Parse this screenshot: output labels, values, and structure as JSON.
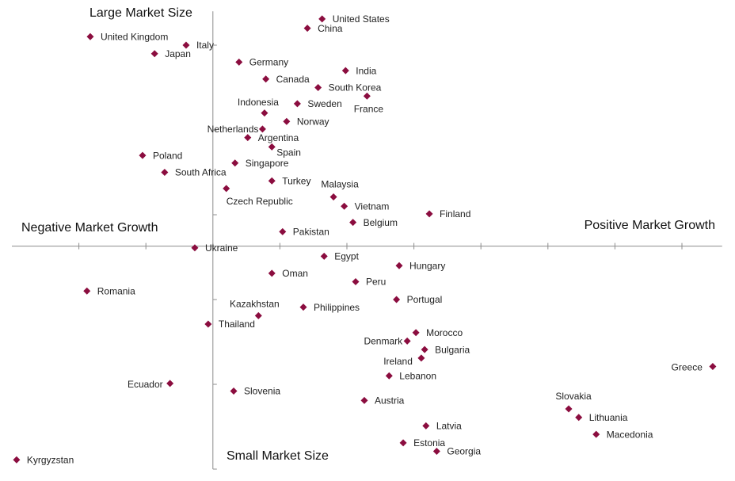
{
  "chart_data": {
    "type": "scatter",
    "annotations": [
      "Large Market Size",
      "Small Market Size",
      "Negative Market Growth",
      "Positive Market Growth"
    ],
    "color": "#8b0d3f",
    "xlim": [
      0,
      10.6
    ],
    "ylim": [
      0,
      5.4
    ],
    "xticks": [
      1,
      2,
      3,
      4,
      5,
      6,
      7,
      8,
      9,
      10
    ],
    "yticks": [
      0,
      1,
      2,
      3,
      4,
      5
    ],
    "axes_cross": [
      3,
      2.63
    ],
    "point_labels": [
      "United States",
      "China",
      "United Kingdom",
      "Italy",
      "Japan",
      "Germany",
      "India",
      "Canada",
      "South Korea",
      "France",
      "Sweden",
      "Indonesia",
      "Norway",
      "Netherlands",
      "Argentina",
      "Spain",
      "Poland",
      "Singapore",
      "South Africa",
      "Turkey",
      "Czech Republic",
      "Malaysia",
      "Vietnam",
      "Finland",
      "Belgium",
      "Pakistan",
      "Ukraine",
      "Egypt",
      "Hungary",
      "Oman",
      "Peru",
      "Romania",
      "Portugal",
      "Kazakhstan",
      "Philippines",
      "Thailand",
      "Morocco",
      "Denmark",
      "Bulgaria",
      "Ireland",
      "Lebanon",
      "Greece",
      "Ecuador",
      "Slovenia",
      "Austria",
      "Slovakia",
      "Lithuania",
      "Latvia",
      "Macedonia",
      "Estonia",
      "Georgia",
      "Kyrgyzstan"
    ],
    "x": [
      4.63,
      4.41,
      1.17,
      2.6,
      2.13,
      3.39,
      4.98,
      3.79,
      4.57,
      5.3,
      4.26,
      3.77,
      4.1,
      3.74,
      3.52,
      3.88,
      1.95,
      3.33,
      2.28,
      3.88,
      3.2,
      4.8,
      4.96,
      6.23,
      5.09,
      4.04,
      2.73,
      4.66,
      5.78,
      3.88,
      5.13,
      1.12,
      5.74,
      3.68,
      4.35,
      2.93,
      6.03,
      5.9,
      6.16,
      6.11,
      5.63,
      10.46,
      2.36,
      3.31,
      5.26,
      8.31,
      8.46,
      6.18,
      8.72,
      5.84,
      6.34,
      0.07
    ],
    "values": [
      5.31,
      5.2,
      5.1,
      5.0,
      4.9,
      4.8,
      4.7,
      4.6,
      4.5,
      4.4,
      4.31,
      4.2,
      4.1,
      4.01,
      3.91,
      3.8,
      3.7,
      3.61,
      3.5,
      3.4,
      3.31,
      3.21,
      3.1,
      3.01,
      2.91,
      2.8,
      2.61,
      2.51,
      2.4,
      2.31,
      2.21,
      2.1,
      2.0,
      1.81,
      1.91,
      1.71,
      1.61,
      1.51,
      1.41,
      1.31,
      1.1,
      1.21,
      1.01,
      0.92,
      0.81,
      0.71,
      0.61,
      0.51,
      0.41,
      0.31,
      0.21,
      0.11
    ]
  }
}
